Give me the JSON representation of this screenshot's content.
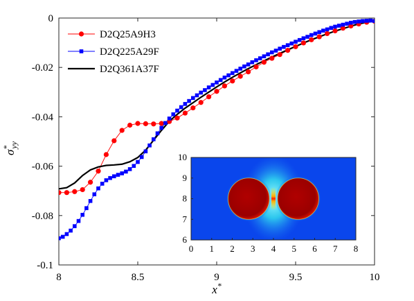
{
  "chart_data": [
    {
      "type": "line",
      "xlabel": "x*",
      "ylabel": "σ*yy",
      "xlim": [
        8,
        10
      ],
      "ylim": [
        -0.1,
        0
      ],
      "x_ticks": [
        "8",
        "8.5",
        "9",
        "9.5",
        "10"
      ],
      "y_ticks": [
        "0",
        "-0.02",
        "-0.04",
        "-0.06",
        "-0.08",
        "-0.1"
      ],
      "grid": false,
      "legend_position": "top-left",
      "series": [
        {
          "name": "D2Q25A9H3",
          "color": "#ff0000",
          "marker": "circle",
          "x": [
            8.0,
            8.05,
            8.1,
            8.15,
            8.2,
            8.25,
            8.3,
            8.35,
            8.4,
            8.45,
            8.5,
            8.55,
            8.6,
            8.65,
            8.7,
            8.75,
            8.8,
            8.85,
            8.9,
            8.95,
            9.0,
            9.05,
            9.1,
            9.15,
            9.2,
            9.25,
            9.3,
            9.35,
            9.4,
            9.45,
            9.5,
            9.55,
            9.6,
            9.65,
            9.7,
            9.75,
            9.8,
            9.85,
            9.9,
            9.95,
            10.0
          ],
          "y": [
            -0.0707,
            -0.0707,
            -0.0703,
            -0.0695,
            -0.0665,
            -0.062,
            -0.0553,
            -0.0497,
            -0.0455,
            -0.0434,
            -0.0427,
            -0.0428,
            -0.0429,
            -0.0427,
            -0.0419,
            -0.0405,
            -0.0385,
            -0.0364,
            -0.0342,
            -0.0319,
            -0.0297,
            -0.0275,
            -0.0255,
            -0.0236,
            -0.0218,
            -0.0198,
            -0.0179,
            -0.0163,
            -0.0148,
            -0.0131,
            -0.0116,
            -0.0101,
            -0.0088,
            -0.0076,
            -0.0063,
            -0.0052,
            -0.0041,
            -0.0032,
            -0.0024,
            -0.0017,
            -0.0013
          ]
        },
        {
          "name": "D2Q225A29F",
          "color": "#0000ff",
          "marker": "square",
          "x": [
            8.0,
            8.025,
            8.05,
            8.075,
            8.1,
            8.125,
            8.15,
            8.175,
            8.2,
            8.225,
            8.25,
            8.275,
            8.3,
            8.325,
            8.35,
            8.375,
            8.4,
            8.425,
            8.45,
            8.475,
            8.5,
            8.525,
            8.55,
            8.575,
            8.6,
            8.625,
            8.65,
            8.675,
            8.7,
            8.725,
            8.75,
            8.775,
            8.8,
            8.825,
            8.85,
            8.875,
            8.9,
            8.925,
            8.95,
            8.975,
            9.0,
            9.025,
            9.05,
            9.075,
            9.1,
            9.125,
            9.15,
            9.175,
            9.2,
            9.225,
            9.25,
            9.275,
            9.3,
            9.325,
            9.35,
            9.375,
            9.4,
            9.425,
            9.45,
            9.475,
            9.5,
            9.525,
            9.55,
            9.575,
            9.6,
            9.625,
            9.65,
            9.675,
            9.7,
            9.725,
            9.75,
            9.775,
            9.8,
            9.825,
            9.85,
            9.875,
            9.9,
            9.925,
            9.95,
            9.975,
            10.0
          ],
          "y": [
            -0.0892,
            -0.0886,
            -0.0875,
            -0.0861,
            -0.0843,
            -0.0822,
            -0.0797,
            -0.077,
            -0.0741,
            -0.0714,
            -0.069,
            -0.0671,
            -0.0657,
            -0.0648,
            -0.0641,
            -0.0635,
            -0.0629,
            -0.0622,
            -0.0612,
            -0.0599,
            -0.0583,
            -0.0563,
            -0.054,
            -0.0516,
            -0.0491,
            -0.0467,
            -0.0445,
            -0.0425,
            -0.0407,
            -0.039,
            -0.0375,
            -0.0361,
            -0.0348,
            -0.0336,
            -0.0324,
            -0.0313,
            -0.0302,
            -0.0292,
            -0.0281,
            -0.0271,
            -0.0261,
            -0.0251,
            -0.0241,
            -0.0232,
            -0.0223,
            -0.0214,
            -0.0205,
            -0.0196,
            -0.0188,
            -0.0179,
            -0.0171,
            -0.0163,
            -0.0155,
            -0.0147,
            -0.0139,
            -0.0132,
            -0.0124,
            -0.0117,
            -0.011,
            -0.0103,
            -0.0096,
            -0.0089,
            -0.0082,
            -0.0076,
            -0.0069,
            -0.0063,
            -0.0057,
            -0.0051,
            -0.0046,
            -0.004,
            -0.0035,
            -0.0031,
            -0.0027,
            -0.0023,
            -0.0019,
            -0.0016,
            -0.0014,
            -0.0012,
            -0.0011,
            -0.001,
            -0.0012
          ]
        },
        {
          "name": "D2Q361A37F",
          "color": "#000000",
          "marker": "none",
          "x": [
            8.0,
            8.05,
            8.1,
            8.15,
            8.2,
            8.25,
            8.3,
            8.35,
            8.4,
            8.45,
            8.5,
            8.55,
            8.6,
            8.65,
            8.7,
            8.75,
            8.8,
            8.85,
            8.9,
            8.95,
            9.0,
            9.05,
            9.1,
            9.15,
            9.2,
            9.25,
            9.3,
            9.35,
            9.4,
            9.45,
            9.5,
            9.55,
            9.6,
            9.65,
            9.7,
            9.75,
            9.8,
            9.85,
            9.9,
            9.95,
            10.0
          ],
          "y": [
            -0.0692,
            -0.0687,
            -0.0668,
            -0.0638,
            -0.0615,
            -0.0603,
            -0.0597,
            -0.0595,
            -0.0592,
            -0.0582,
            -0.0565,
            -0.0535,
            -0.0495,
            -0.0455,
            -0.0418,
            -0.039,
            -0.0365,
            -0.0343,
            -0.0321,
            -0.03,
            -0.0279,
            -0.0259,
            -0.024,
            -0.0222,
            -0.0205,
            -0.0189,
            -0.0173,
            -0.0158,
            -0.0143,
            -0.0129,
            -0.0115,
            -0.0101,
            -0.0088,
            -0.0076,
            -0.0064,
            -0.0053,
            -0.0043,
            -0.0033,
            -0.0024,
            -0.0017,
            -0.0013
          ]
        }
      ]
    },
    {
      "type": "heatmap",
      "xlim": [
        0,
        8
      ],
      "ylim": [
        6,
        10
      ],
      "x_ticks": [
        "0",
        "1",
        "2",
        "3",
        "4",
        "5",
        "6",
        "7",
        "8"
      ],
      "y_ticks": [
        "10",
        "9",
        "8",
        "7",
        "6"
      ],
      "particles": [
        {
          "cx": 2.8,
          "cy": 8.0,
          "r": 1.0
        },
        {
          "cx": 5.2,
          "cy": 8.0,
          "r": 1.0
        }
      ],
      "colors": {
        "background": "#0a46ec",
        "particle": "#a40000",
        "glow": "#55ffff",
        "hot": "#ff3300"
      }
    }
  ]
}
